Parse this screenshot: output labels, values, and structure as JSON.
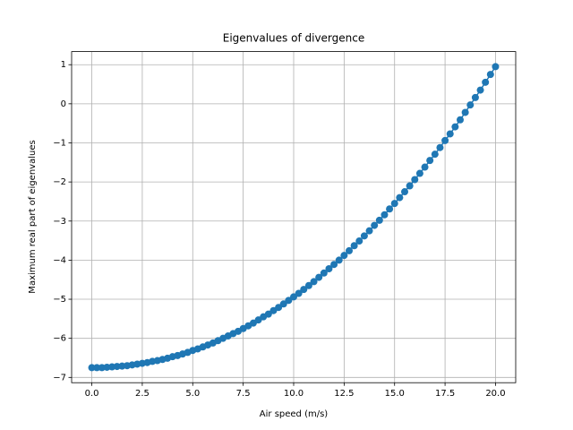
{
  "chart_data": {
    "type": "line",
    "marker": "o",
    "title": "Eigenvalues of divergence",
    "xlabel": "Air speed (m/s)",
    "ylabel": "Maximum real part of eigenvalues",
    "color": "#1f77b4",
    "grid": true,
    "x": [
      0,
      0.25,
      0.5,
      0.75,
      1,
      1.25,
      1.5,
      1.75,
      2,
      2.25,
      2.5,
      2.75,
      3,
      3.25,
      3.5,
      3.75,
      4,
      4.25,
      4.5,
      4.75,
      5,
      5.25,
      5.5,
      5.75,
      6,
      6.25,
      6.5,
      6.75,
      7,
      7.25,
      7.5,
      7.75,
      8,
      8.25,
      8.5,
      8.75,
      9,
      9.25,
      9.5,
      9.75,
      10,
      10.25,
      10.5,
      10.75,
      11,
      11.25,
      11.5,
      11.75,
      12,
      12.25,
      12.5,
      12.75,
      13,
      13.25,
      13.5,
      13.75,
      14,
      14.25,
      14.5,
      14.75,
      15,
      15.25,
      15.5,
      15.75,
      16,
      16.25,
      16.5,
      16.75,
      17,
      17.25,
      17.5,
      17.75,
      18,
      18.25,
      18.5,
      18.75,
      19,
      19.25,
      19.5,
      19.75,
      20
    ],
    "values": [
      -6.75,
      -6.75,
      -6.75,
      -6.74,
      -6.73,
      -6.72,
      -6.71,
      -6.7,
      -6.68,
      -6.66,
      -6.64,
      -6.62,
      -6.59,
      -6.57,
      -6.54,
      -6.51,
      -6.47,
      -6.44,
      -6.4,
      -6.36,
      -6.31,
      -6.27,
      -6.22,
      -6.17,
      -6.12,
      -6.06,
      -6.0,
      -5.94,
      -5.88,
      -5.82,
      -5.75,
      -5.68,
      -5.61,
      -5.53,
      -5.45,
      -5.38,
      -5.29,
      -5.21,
      -5.12,
      -5.03,
      -4.94,
      -4.85,
      -4.75,
      -4.65,
      -4.55,
      -4.44,
      -4.33,
      -4.22,
      -4.11,
      -4.0,
      -3.88,
      -3.76,
      -3.63,
      -3.51,
      -3.38,
      -3.25,
      -3.11,
      -2.98,
      -2.84,
      -2.69,
      -2.55,
      -2.4,
      -2.25,
      -2.1,
      -1.94,
      -1.78,
      -1.62,
      -1.45,
      -1.29,
      -1.12,
      -0.94,
      -0.77,
      -0.59,
      -0.41,
      -0.22,
      -0.03,
      0.16,
      0.35,
      0.55,
      0.75,
      0.95
    ],
    "xlim": [
      -1,
      21
    ],
    "ylim": [
      -7.135,
      1.335
    ],
    "xticks": [
      {
        "value": 0,
        "label": "0.0"
      },
      {
        "value": 2.5,
        "label": "2.5"
      },
      {
        "value": 5,
        "label": "5.0"
      },
      {
        "value": 7.5,
        "label": "7.5"
      },
      {
        "value": 10,
        "label": "10.0"
      },
      {
        "value": 12.5,
        "label": "12.5"
      },
      {
        "value": 15,
        "label": "15.0"
      },
      {
        "value": 17.5,
        "label": "17.5"
      },
      {
        "value": 20,
        "label": "20.0"
      }
    ],
    "yticks": [
      {
        "value": -7,
        "label": "−7"
      },
      {
        "value": -6,
        "label": "−6"
      },
      {
        "value": -5,
        "label": "−5"
      },
      {
        "value": -4,
        "label": "−4"
      },
      {
        "value": -3,
        "label": "−3"
      },
      {
        "value": -2,
        "label": "−2"
      },
      {
        "value": -1,
        "label": "−1"
      },
      0,
      1
    ]
  }
}
